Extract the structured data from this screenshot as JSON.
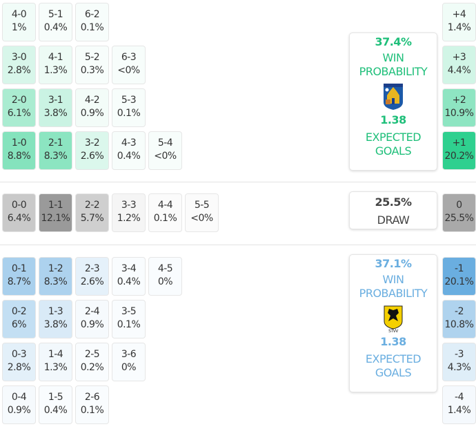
{
  "colors": {
    "home": "#2fd08f",
    "away": "#6aaee0",
    "draw": "#9a9a9a",
    "home_text": "#1fbf7a",
    "away_text": "#6aaee0",
    "draw_text": "#444444"
  },
  "home": {
    "grid": [
      [
        {
          "score": "4-0",
          "pct": "1%"
        },
        {
          "score": "5-1",
          "pct": "0.4%"
        },
        {
          "score": "6-2",
          "pct": "0.1%"
        }
      ],
      [
        {
          "score": "3-0",
          "pct": "2.8%"
        },
        {
          "score": "4-1",
          "pct": "1.3%"
        },
        {
          "score": "5-2",
          "pct": "0.3%"
        },
        {
          "score": "6-3",
          "pct": "<0%"
        }
      ],
      [
        {
          "score": "2-0",
          "pct": "6.1%"
        },
        {
          "score": "3-1",
          "pct": "3.8%"
        },
        {
          "score": "4-2",
          "pct": "0.9%"
        },
        {
          "score": "5-3",
          "pct": "0.1%"
        }
      ],
      [
        {
          "score": "1-0",
          "pct": "8.8%"
        },
        {
          "score": "2-1",
          "pct": "8.3%"
        },
        {
          "score": "3-2",
          "pct": "2.6%"
        },
        {
          "score": "4-3",
          "pct": "0.4%"
        },
        {
          "score": "5-4",
          "pct": "<0%"
        }
      ]
    ],
    "margins": [
      {
        "diff": "+4",
        "pct": "1.4%"
      },
      {
        "diff": "+3",
        "pct": "4.4%"
      },
      {
        "diff": "+2",
        "pct": "10.9%"
      },
      {
        "diff": "+1",
        "pct": "20.2%"
      }
    ],
    "win_pct": "37.4%",
    "win_label_1": "WIN",
    "win_label_2": "PROBABILITY",
    "xg": "1.38",
    "xg_label_1": "EXPECTED",
    "xg_label_2": "GOALS",
    "logo": "KVC WESTERLO"
  },
  "draw": {
    "grid": [
      [
        {
          "score": "0-0",
          "pct": "6.4%"
        },
        {
          "score": "1-1",
          "pct": "12.1%"
        },
        {
          "score": "2-2",
          "pct": "5.7%"
        },
        {
          "score": "3-3",
          "pct": "1.2%"
        },
        {
          "score": "4-4",
          "pct": "0.1%"
        },
        {
          "score": "5-5",
          "pct": "<0%"
        }
      ]
    ],
    "margins": [
      {
        "diff": "0",
        "pct": "25.5%"
      }
    ],
    "pct": "25.5%",
    "label": "DRAW"
  },
  "away": {
    "grid": [
      [
        {
          "score": "0-1",
          "pct": "8.7%"
        },
        {
          "score": "1-2",
          "pct": "8.3%"
        },
        {
          "score": "2-3",
          "pct": "2.6%"
        },
        {
          "score": "3-4",
          "pct": "0.4%"
        },
        {
          "score": "4-5",
          "pct": "0%"
        }
      ],
      [
        {
          "score": "0-2",
          "pct": "6%"
        },
        {
          "score": "1-3",
          "pct": "3.8%"
        },
        {
          "score": "2-4",
          "pct": "0.9%"
        },
        {
          "score": "3-5",
          "pct": "0.1%"
        }
      ],
      [
        {
          "score": "0-3",
          "pct": "2.8%"
        },
        {
          "score": "1-4",
          "pct": "1.3%"
        },
        {
          "score": "2-5",
          "pct": "0.2%"
        },
        {
          "score": "3-6",
          "pct": "0%"
        }
      ],
      [
        {
          "score": "0-4",
          "pct": "0.9%"
        },
        {
          "score": "1-5",
          "pct": "0.4%"
        },
        {
          "score": "2-6",
          "pct": "0.1%"
        }
      ]
    ],
    "margins": [
      {
        "diff": "-1",
        "pct": "20.1%"
      },
      {
        "diff": "-2",
        "pct": "10.8%"
      },
      {
        "diff": "-3",
        "pct": "4.3%"
      },
      {
        "diff": "-4",
        "pct": "1.4%"
      }
    ],
    "win_pct": "37.1%",
    "win_label_1": "WIN",
    "win_label_2": "PROBABILITY",
    "xg": "1.38",
    "xg_label_1": "EXPECTED",
    "xg_label_2": "GOALS",
    "logo": "STVV"
  }
}
